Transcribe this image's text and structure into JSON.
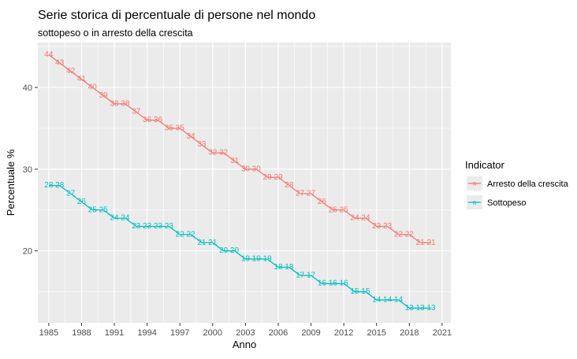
{
  "chart_data": {
    "type": "line",
    "title": "Serie storica di percentuale di persone nel mondo",
    "subtitle": "sottopeso o in arresto della crescita",
    "xlabel": "Anno",
    "ylabel": "Percentuale %",
    "xlim": [
      1984,
      2021.8
    ],
    "ylim": [
      11.2,
      45.5
    ],
    "x_ticks": [
      1985,
      1988,
      1991,
      1994,
      1997,
      2000,
      2003,
      2006,
      2009,
      2012,
      2015,
      2018,
      2021
    ],
    "y_ticks": [
      20,
      30,
      40
    ],
    "grid": true,
    "legend": {
      "title": "Indicator",
      "position": "right"
    },
    "x": [
      1985,
      1986,
      1987,
      1988,
      1989,
      1990,
      1991,
      1992,
      1993,
      1994,
      1995,
      1996,
      1997,
      1998,
      1999,
      2000,
      2001,
      2002,
      2003,
      2004,
      2005,
      2006,
      2007,
      2008,
      2009,
      2010,
      2011,
      2012,
      2013,
      2014,
      2015,
      2016,
      2017,
      2018,
      2019,
      2020
    ],
    "series": [
      {
        "name": "Arresto della crescita",
        "color": "#f8766d",
        "values": [
          44,
          43,
          42,
          41,
          40,
          39,
          38,
          38,
          37,
          36,
          36,
          35,
          35,
          34,
          33,
          32,
          32,
          31,
          30,
          30,
          29,
          29,
          28,
          27,
          27,
          26,
          25,
          25,
          24,
          24,
          23,
          23,
          22,
          22,
          21,
          21
        ]
      },
      {
        "name": "Sottopeso",
        "color": "#00bfc4",
        "values": [
          28,
          28,
          27,
          26,
          25,
          25,
          24,
          24,
          23,
          23,
          23,
          23,
          22,
          22,
          21,
          21,
          20,
          20,
          19,
          19,
          19,
          18,
          18,
          17,
          17,
          16,
          16,
          16,
          15,
          15,
          14,
          14,
          14,
          13,
          13,
          13
        ]
      }
    ]
  }
}
